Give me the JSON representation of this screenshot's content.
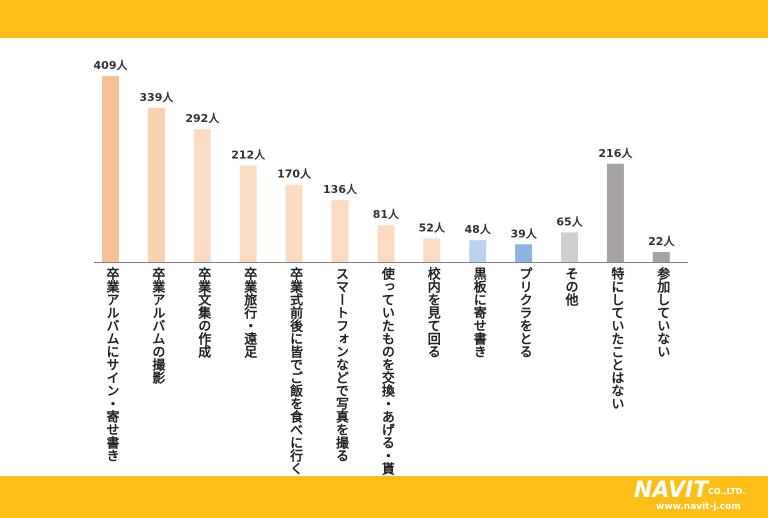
{
  "branding": {
    "logo_text": "NAVIT",
    "logo_suffix": "CO.,LTD.",
    "url": "www.navit-j.com"
  },
  "chart_data": {
    "type": "bar",
    "unit": "人",
    "categories": [
      "卒業アルバムにサイン・寄せ書き",
      "卒業アルバムの撮影",
      "卒業文集の作成",
      "卒業旅行・遠足",
      "卒業式前後に皆でご飯を食べに行く",
      "スマートフォンなどで写真を撮る",
      "使っていたものを交換・あげる・貰う",
      "校内を見て回る",
      "黒板に寄せ書き",
      "プリクラをとる",
      "その他",
      "特にしていたことはない",
      "参加していない"
    ],
    "values": [
      409,
      339,
      292,
      212,
      170,
      136,
      81,
      52,
      48,
      39,
      65,
      216,
      22
    ],
    "value_labels": [
      "409人",
      "339人",
      "292人",
      "212人",
      "170人",
      "136人",
      "81人",
      "52人",
      "48人",
      "39人",
      "65人",
      "216人",
      "22人"
    ],
    "colors": [
      "#f7c193",
      "#f9d2b0",
      "#fbdcc3",
      "#fbdcc3",
      "#fbdcc3",
      "#fbdcc3",
      "#fbdcc3",
      "#fbdcc3",
      "#bcd3ef",
      "#8eb4e3",
      "#d0cece",
      "#a6a2a6",
      "#a6a2a6"
    ],
    "ylim": [
      0,
      409
    ],
    "grid": false,
    "legend": "none"
  }
}
